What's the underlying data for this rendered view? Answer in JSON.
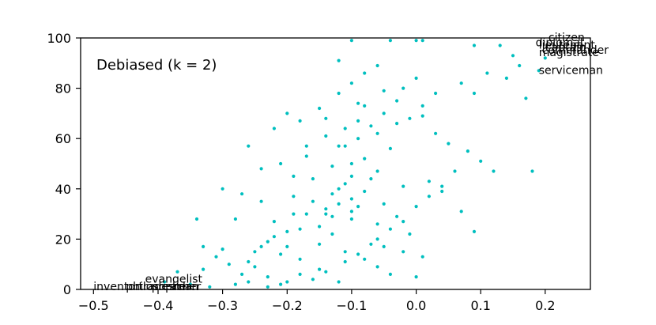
{
  "chart_data": {
    "type": "scatter",
    "title": "",
    "xlabel": "",
    "ylabel": "",
    "annotation": "Debiased (k = 2)",
    "xlim": [
      -0.52,
      0.27
    ],
    "ylim": [
      0,
      100
    ],
    "x_ticks": [
      "−0.5",
      "−0.4",
      "−0.3",
      "−0.2",
      "−0.1",
      "0.0",
      "0.1",
      "0.2"
    ],
    "x_tick_values": [
      -0.5,
      -0.4,
      -0.3,
      -0.2,
      -0.1,
      0.0,
      0.1,
      0.2
    ],
    "y_ticks": [
      "0",
      "20",
      "40",
      "60",
      "80",
      "100"
    ],
    "y_tick_values": [
      0,
      20,
      40,
      60,
      80,
      100
    ],
    "grid": false,
    "point_color": "#00BFBF",
    "points": [
      [
        -0.17,
        30
      ],
      [
        -0.12,
        40
      ],
      [
        -0.1,
        50
      ],
      [
        -0.06,
        20
      ],
      [
        -0.16,
        35
      ],
      [
        -0.13,
        22
      ],
      [
        -0.1,
        28
      ],
      [
        -0.04,
        56
      ],
      [
        -0.1,
        45
      ],
      [
        -0.05,
        70
      ],
      [
        -0.06,
        47
      ],
      [
        -0.08,
        52
      ],
      [
        -0.12,
        34
      ],
      [
        -0.14,
        32
      ],
      [
        -0.15,
        18
      ],
      [
        -0.1,
        36
      ],
      [
        -0.13,
        29
      ],
      [
        -0.18,
        24
      ],
      [
        -0.19,
        30
      ],
      [
        -0.2,
        23
      ],
      [
        -0.22,
        21
      ],
      [
        -0.23,
        19
      ],
      [
        -0.25,
        15
      ],
      [
        -0.26,
        11
      ],
      [
        -0.27,
        6
      ],
      [
        -0.29,
        10
      ],
      [
        -0.31,
        13
      ],
      [
        -0.33,
        8
      ],
      [
        -0.3,
        16
      ],
      [
        -0.2,
        17
      ],
      [
        -0.11,
        42
      ],
      [
        -0.09,
        60
      ],
      [
        -0.07,
        65
      ],
      [
        -0.03,
        75
      ],
      [
        -0.02,
        80
      ],
      [
        0.0,
        84
      ],
      [
        -0.08,
        73
      ],
      [
        -0.1,
        82
      ],
      [
        -0.12,
        78
      ],
      [
        -0.15,
        72
      ],
      [
        -0.18,
        67
      ],
      [
        -0.2,
        70
      ],
      [
        -0.22,
        64
      ],
      [
        -0.14,
        61
      ],
      [
        -0.11,
        57
      ],
      [
        -0.06,
        62
      ],
      [
        -0.03,
        66
      ],
      [
        0.01,
        69
      ],
      [
        0.03,
        62
      ],
      [
        0.05,
        58
      ],
      [
        0.08,
        55
      ],
      [
        0.1,
        51
      ],
      [
        0.06,
        47
      ],
      [
        0.04,
        41
      ],
      [
        0.02,
        37
      ],
      [
        0.0,
        33
      ],
      [
        -0.02,
        27
      ],
      [
        -0.04,
        24
      ],
      [
        -0.07,
        18
      ],
      [
        -0.09,
        14
      ],
      [
        -0.11,
        11
      ],
      [
        -0.14,
        7
      ],
      [
        -0.16,
        4
      ],
      [
        -0.2,
        3
      ],
      [
        -0.23,
        5
      ],
      [
        -0.25,
        9
      ],
      [
        -0.24,
        17
      ],
      [
        -0.22,
        27
      ],
      [
        -0.28,
        28
      ],
      [
        -0.3,
        40
      ],
      [
        -0.26,
        57
      ],
      [
        -0.21,
        50
      ],
      [
        -0.19,
        45
      ],
      [
        -0.17,
        53
      ],
      [
        -0.13,
        49
      ],
      [
        -0.08,
        39
      ],
      [
        -0.05,
        34
      ],
      [
        -0.03,
        29
      ],
      [
        -0.01,
        22
      ],
      [
        0.0,
        5
      ],
      [
        -0.12,
        91
      ],
      [
        -0.1,
        99
      ],
      [
        -0.04,
        99
      ],
      [
        0.0,
        99
      ],
      [
        0.01,
        99
      ],
      [
        0.09,
        97
      ],
      [
        0.13,
        97
      ],
      [
        0.15,
        93
      ],
      [
        0.16,
        89
      ],
      [
        0.14,
        84
      ],
      [
        0.11,
        86
      ],
      [
        0.07,
        82
      ],
      [
        0.03,
        78
      ],
      [
        0.01,
        73
      ],
      [
        -0.01,
        68
      ],
      [
        -0.09,
        74
      ],
      [
        -0.14,
        68
      ],
      [
        -0.17,
        57
      ],
      [
        -0.24,
        48
      ],
      [
        -0.27,
        38
      ],
      [
        -0.33,
        17
      ],
      [
        -0.34,
        28
      ],
      [
        -0.37,
        7
      ],
      [
        -0.39,
        3
      ],
      [
        -0.35,
        2
      ],
      [
        -0.32,
        1
      ],
      [
        -0.28,
        2
      ],
      [
        -0.26,
        3
      ],
      [
        -0.23,
        1
      ],
      [
        -0.21,
        2
      ],
      [
        -0.18,
        6
      ],
      [
        -0.15,
        8
      ],
      [
        -0.12,
        3
      ],
      [
        -0.08,
        12
      ],
      [
        -0.05,
        17
      ],
      [
        -0.02,
        15
      ],
      [
        0.01,
        13
      ],
      [
        -0.06,
        26
      ],
      [
        -0.1,
        31
      ],
      [
        -0.13,
        38
      ],
      [
        -0.16,
        44
      ],
      [
        -0.19,
        37
      ],
      [
        0.04,
        39
      ],
      [
        0.07,
        31
      ],
      [
        0.09,
        23
      ],
      [
        0.12,
        47
      ],
      [
        0.17,
        76
      ],
      [
        0.18,
        47
      ],
      [
        0.19,
        87
      ],
      [
        0.2,
        92
      ],
      [
        0.09,
        78
      ],
      [
        -0.02,
        41
      ],
      [
        -0.07,
        44
      ],
      [
        -0.09,
        67
      ],
      [
        -0.11,
        64
      ],
      [
        -0.05,
        79
      ],
      [
        0.02,
        43
      ],
      [
        -0.12,
        57
      ],
      [
        -0.15,
        25
      ],
      [
        -0.18,
        12
      ],
      [
        -0.21,
        14
      ],
      [
        -0.24,
        35
      ],
      [
        -0.06,
        9
      ],
      [
        -0.04,
        6
      ],
      [
        -0.08,
        86
      ],
      [
        -0.06,
        89
      ],
      [
        -0.11,
        15
      ],
      [
        -0.09,
        33
      ],
      [
        -0.14,
        30
      ]
    ],
    "word_labels": [
      {
        "text": "citizen",
        "x": 0.205,
        "y": 100
      },
      {
        "text": "diplomat",
        "x": 0.185,
        "y": 98
      },
      {
        "text": "lieutenant",
        "x": 0.19,
        "y": 97
      },
      {
        "text": "captain",
        "x": 0.2,
        "y": 96
      },
      {
        "text": "commander",
        "x": 0.195,
        "y": 95
      },
      {
        "text": "magistrate",
        "x": 0.19,
        "y": 94
      },
      {
        "text": "serviceman",
        "x": 0.19,
        "y": 87
      },
      {
        "text": "evangelist",
        "x": -0.42,
        "y": 4
      },
      {
        "text": "inventor",
        "x": -0.5,
        "y": 1
      },
      {
        "text": "philosopher",
        "x": -0.45,
        "y": 1
      },
      {
        "text": "preacher",
        "x": -0.41,
        "y": 1
      },
      {
        "text": "tradesman",
        "x": -0.43,
        "y": 1
      }
    ]
  }
}
